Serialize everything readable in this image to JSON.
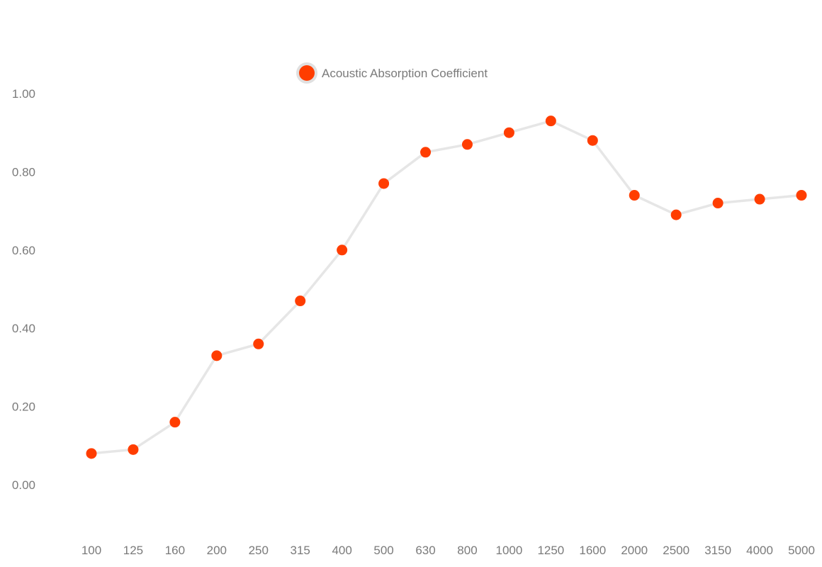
{
  "chart_data": {
    "type": "line",
    "categories": [
      "100",
      "125",
      "160",
      "200",
      "250",
      "315",
      "400",
      "500",
      "630",
      "800",
      "1000",
      "1250",
      "1600",
      "2000",
      "2500",
      "3150",
      "4000",
      "5000"
    ],
    "series": [
      {
        "name": "Acoustic Absorption Coefficient",
        "values": [
          0.08,
          0.09,
          0.16,
          0.33,
          0.36,
          0.47,
          0.6,
          0.77,
          0.85,
          0.87,
          0.9,
          0.93,
          0.88,
          0.74,
          0.69,
          0.72,
          0.73,
          0.74
        ]
      }
    ],
    "yticks": [
      "0.00",
      "0.20",
      "0.40",
      "0.60",
      "0.80",
      "1.00"
    ],
    "ylim": [
      -0.12,
      1.08
    ],
    "title": "",
    "xlabel": "",
    "ylabel": "",
    "grid": false,
    "legend_position": "top-center",
    "colors": {
      "marker": "#ff3d00",
      "line": "#e6e6e6",
      "marker_halo": "#e0e0e0",
      "text": "#7a7a7a"
    }
  }
}
